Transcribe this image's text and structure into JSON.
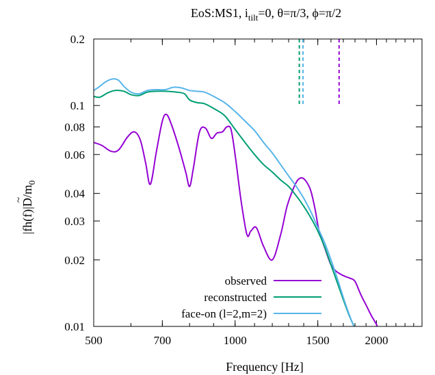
{
  "chart_data": {
    "type": "line",
    "title": "EoS:MS1, i_tilt=0, θ=π/3, ϕ=π/2",
    "title_parts": {
      "lead": "EoS:MS1, i",
      "subscript": "tilt",
      "tail": "=0, θ=π/3, ϕ=π/2"
    },
    "xlabel": "Frequency [Hz]",
    "ylabel": "|f̃h(f)|D/m0",
    "ylabel_parts": {
      "lead": "|fh",
      "tilde": "~",
      "mid": "(f)|D/m",
      "subscript": "0"
    },
    "x_scale": "log",
    "y_scale": "log",
    "xlim": [
      500,
      2500
    ],
    "ylim": [
      0.01,
      0.2
    ],
    "x_ticks": [
      {
        "value": 500,
        "label": "500"
      },
      {
        "value": 700,
        "label": "700"
      },
      {
        "value": 1000,
        "label": "1000"
      },
      {
        "value": 1500,
        "label": "1500"
      },
      {
        "value": 2000,
        "label": "2000"
      }
    ],
    "y_ticks": [
      {
        "value": 0.01,
        "label": "0.01"
      },
      {
        "value": 0.02,
        "label": "0.02"
      },
      {
        "value": 0.03,
        "label": "0.03"
      },
      {
        "value": 0.04,
        "label": "0.04"
      },
      {
        "value": 0.06,
        "label": "0.06"
      },
      {
        "value": 0.08,
        "label": "0.08"
      },
      {
        "value": 0.1,
        "label": "0.1"
      },
      {
        "value": 0.2,
        "label": "0.2"
      }
    ],
    "grid": false,
    "legend_position": "bottom-right",
    "series": [
      {
        "name": "observed",
        "color": "#9400d3",
        "x": [
          500,
          520,
          545,
          565,
          590,
          610,
          628,
          645,
          660,
          680,
          700,
          715,
          735,
          760,
          785,
          800,
          815,
          840,
          865,
          890,
          915,
          940,
          960,
          980,
          1000,
          1030,
          1060,
          1080,
          1110,
          1150,
          1200,
          1250,
          1290,
          1330,
          1360,
          1390,
          1420,
          1450,
          1480,
          1510,
          1560,
          1600,
          1640,
          1680,
          1720,
          1760,
          1800,
          1850,
          1900,
          1950,
          2000,
          2020
        ],
        "y": [
          0.068,
          0.066,
          0.062,
          0.063,
          0.072,
          0.076,
          0.07,
          0.055,
          0.044,
          0.062,
          0.085,
          0.091,
          0.08,
          0.064,
          0.05,
          0.043,
          0.052,
          0.076,
          0.079,
          0.071,
          0.075,
          0.076,
          0.08,
          0.078,
          0.06,
          0.037,
          0.026,
          0.027,
          0.028,
          0.023,
          0.02,
          0.026,
          0.035,
          0.042,
          0.046,
          0.047,
          0.045,
          0.041,
          0.034,
          0.027,
          0.022,
          0.019,
          0.0178,
          0.0172,
          0.0168,
          0.0165,
          0.016,
          0.014,
          0.0125,
          0.0112,
          0.0102,
          0.0095
        ]
      },
      {
        "name": "reconstructed",
        "color": "#009e73",
        "x": [
          500,
          515,
          535,
          555,
          580,
          600,
          625,
          650,
          680,
          710,
          750,
          780,
          800,
          830,
          860,
          900,
          950,
          1000,
          1050,
          1100,
          1150,
          1200,
          1250,
          1300,
          1350,
          1400,
          1450,
          1500,
          1550,
          1600,
          1650,
          1700,
          1750,
          1800
        ],
        "y": [
          0.11,
          0.109,
          0.114,
          0.117,
          0.116,
          0.112,
          0.111,
          0.115,
          0.116,
          0.116,
          0.115,
          0.113,
          0.106,
          0.103,
          0.102,
          0.097,
          0.09,
          0.078,
          0.068,
          0.06,
          0.054,
          0.05,
          0.046,
          0.043,
          0.039,
          0.035,
          0.031,
          0.027,
          0.023,
          0.019,
          0.0158,
          0.0132,
          0.0112,
          0.0098
        ]
      },
      {
        "name": "face-on (l=2,m=2)",
        "color": "#56b4e9",
        "x": [
          500,
          515,
          530,
          550,
          565,
          580,
          600,
          625,
          650,
          680,
          710,
          740,
          770,
          800,
          830,
          860,
          900,
          950,
          1000,
          1050,
          1100,
          1150,
          1200,
          1250,
          1300,
          1350,
          1400,
          1450,
          1500,
          1550,
          1600,
          1650,
          1700,
          1750,
          1800
        ],
        "y": [
          0.117,
          0.122,
          0.128,
          0.132,
          0.13,
          0.122,
          0.115,
          0.113,
          0.117,
          0.118,
          0.118,
          0.121,
          0.12,
          0.117,
          0.116,
          0.115,
          0.11,
          0.103,
          0.094,
          0.085,
          0.077,
          0.068,
          0.061,
          0.054,
          0.048,
          0.043,
          0.038,
          0.033,
          0.028,
          0.024,
          0.02,
          0.0165,
          0.0135,
          0.0113,
          0.0097
        ]
      }
    ],
    "markers": [
      {
        "x": 1370,
        "color": "#009e73"
      },
      {
        "x": 1395,
        "color": "#56b4e9"
      },
      {
        "x": 1665,
        "color": "#9400d3"
      }
    ]
  }
}
